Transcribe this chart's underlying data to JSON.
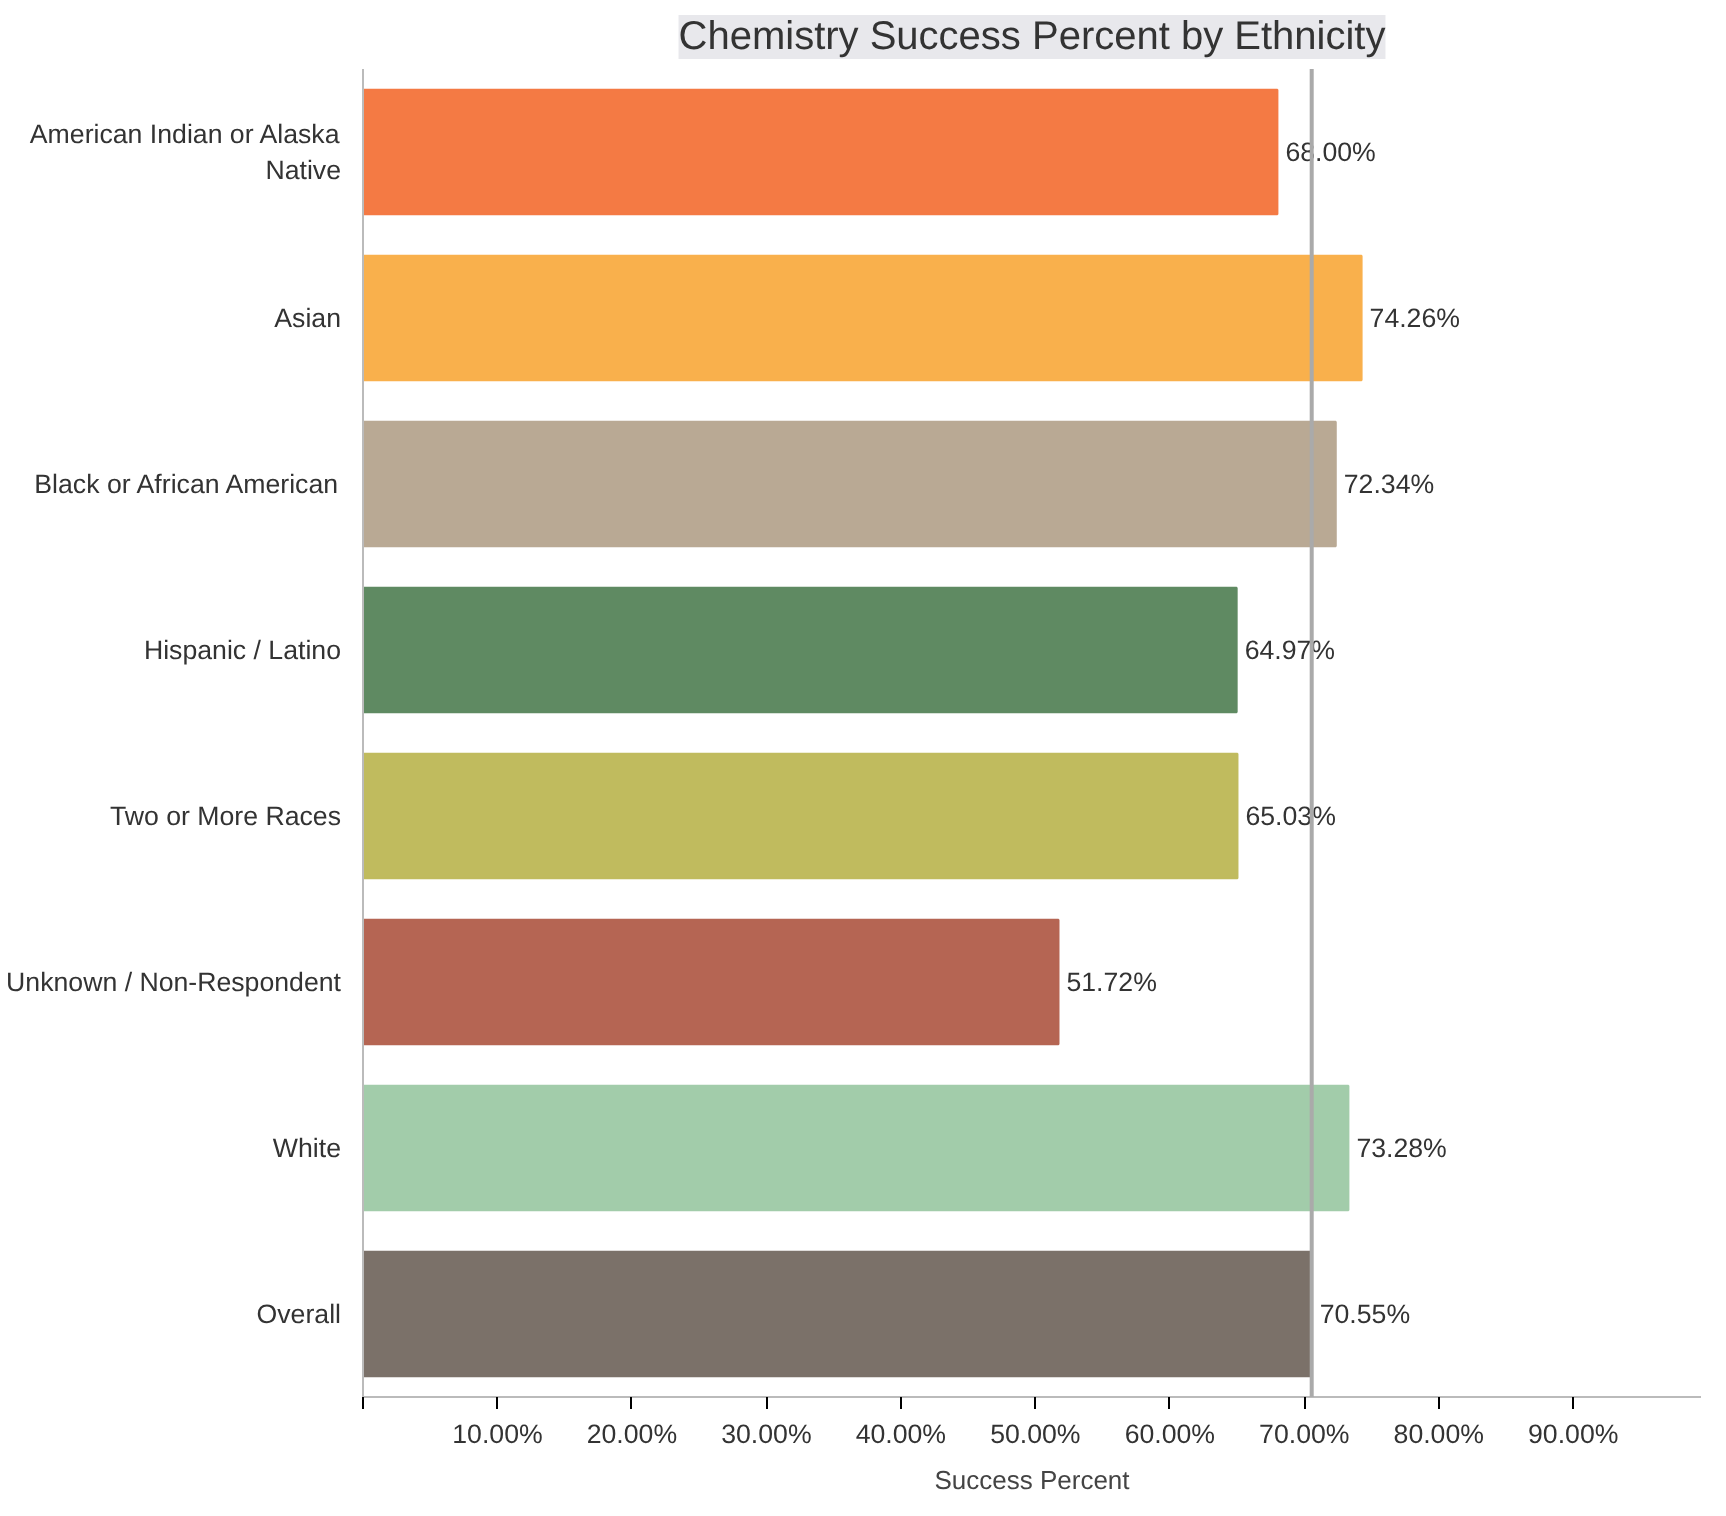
{
  "chart_data": {
    "type": "bar",
    "orientation": "horizontal",
    "title": "Chemistry Success Percent by Ethnicity",
    "xlabel": "Success Percent",
    "categories": [
      "American Indian or Alaska Native",
      "Asian",
      "Black or African American",
      "Hispanic / Latino",
      "Two or More Races",
      "Unknown / Non-Respondent",
      "White",
      "Overall"
    ],
    "values": [
      68.0,
      74.26,
      72.34,
      64.97,
      65.03,
      51.72,
      73.28,
      70.55
    ],
    "colors": [
      "#f47a44",
      "#f9b04c",
      "#b9a994",
      "#5f8a62",
      "#c0bb5e",
      "#b56553",
      "#a2ccaa",
      "#7b7169"
    ],
    "value_labels": [
      "68.00%",
      "74.26%",
      "72.34%",
      "64.97%",
      "65.03%",
      "51.72%",
      "73.28%",
      "70.55%"
    ],
    "xlim": [
      0,
      99.5
    ],
    "xticks": [
      {
        "value": 0,
        "label": null
      },
      {
        "value": 10,
        "label": "10.00%"
      },
      {
        "value": 20,
        "label": "20.00%"
      },
      {
        "value": 30,
        "label": "30.00%"
      },
      {
        "value": 40,
        "label": "40.00%"
      },
      {
        "value": 50,
        "label": "50.00%"
      },
      {
        "value": 60,
        "label": "60.00%"
      },
      {
        "value": 70,
        "label": "70.00%"
      },
      {
        "value": 80,
        "label": "80.00%"
      },
      {
        "value": 90,
        "label": "90.00%"
      }
    ],
    "ref_lines": [
      {
        "axis": "x",
        "value": 70.55,
        "color": "#aaaaaa"
      }
    ],
    "grid": false
  }
}
